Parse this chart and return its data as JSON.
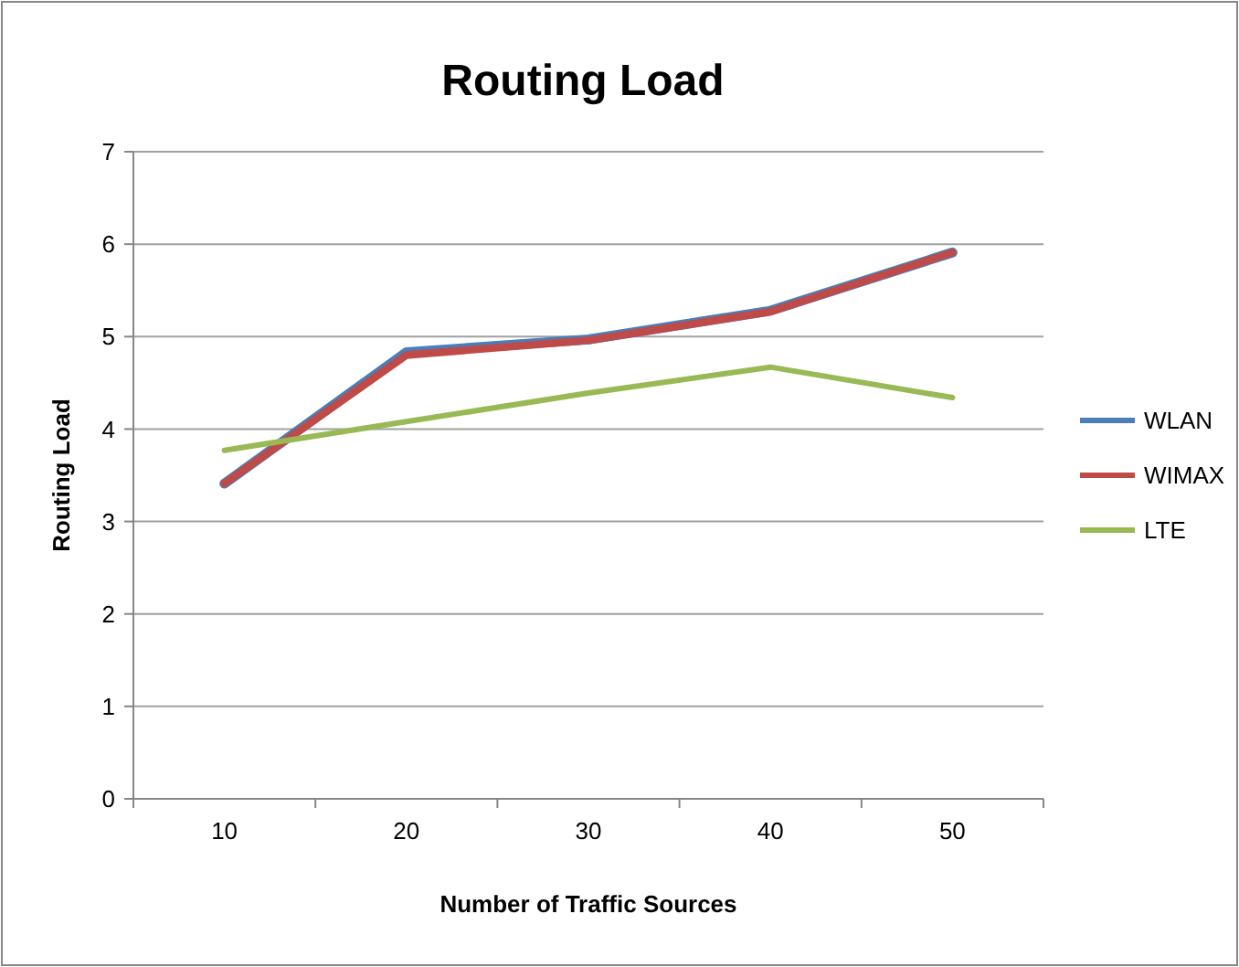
{
  "chart_data": {
    "type": "line",
    "title": "Routing Load",
    "xlabel": "Number of Traffic Sources",
    "ylabel": "Routing Load",
    "categories": [
      "10",
      "20",
      "30",
      "40",
      "50"
    ],
    "series": [
      {
        "name": "WLAN",
        "color": "#4a7ebb",
        "values": [
          3.41,
          4.83,
          4.97,
          5.28,
          5.91
        ]
      },
      {
        "name": "WIMAX",
        "color": "#be4b48",
        "values": [
          3.41,
          4.8,
          4.96,
          5.27,
          5.91
        ]
      },
      {
        "name": "LTE",
        "color": "#98b954",
        "values": [
          3.77,
          4.08,
          4.39,
          4.67,
          4.34
        ]
      }
    ],
    "ylim": [
      0,
      7
    ],
    "yticks": [
      0,
      1,
      2,
      3,
      4,
      5,
      6,
      7
    ],
    "grid": "y",
    "legend": "right",
    "marker": "none",
    "line_style": "solid"
  }
}
